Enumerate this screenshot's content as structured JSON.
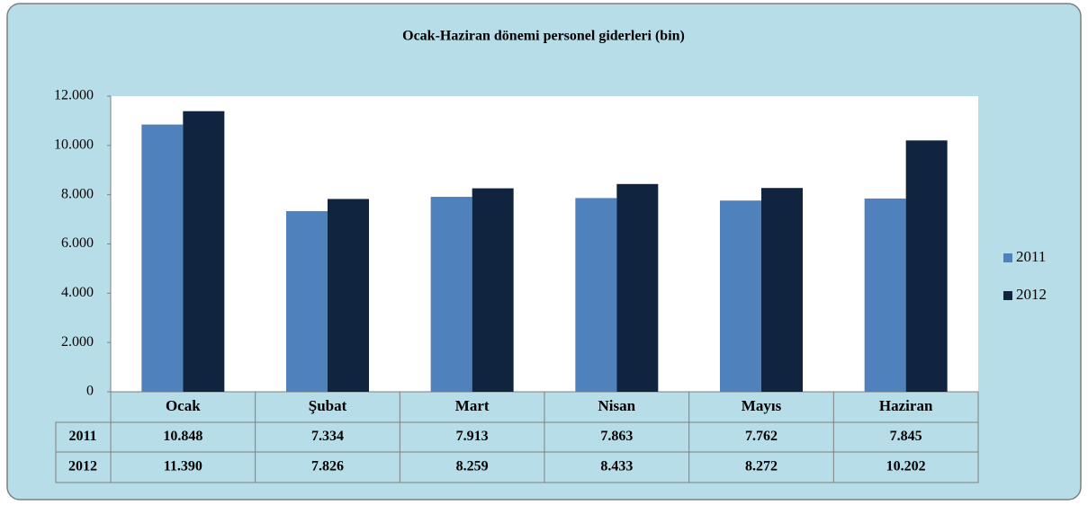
{
  "chart_data": {
    "type": "bar",
    "title": "Ocak-Haziran dönemi personel giderleri (bin)",
    "categories": [
      "Ocak",
      "Şubat",
      "Mart",
      "Nisan",
      "Mayıs",
      "Haziran"
    ],
    "series": [
      {
        "name": "2011",
        "color": "#4f81bd",
        "values": [
          10848,
          7334,
          7913,
          7863,
          7762,
          7845
        ],
        "value_labels": [
          "10.848",
          "7.334",
          "7.913",
          "7.863",
          "7.762",
          "7.845"
        ]
      },
      {
        "name": "2012",
        "color": "#10243f",
        "values": [
          11390,
          7826,
          8259,
          8433,
          8272,
          10202
        ],
        "value_labels": [
          "11.390",
          "7.826",
          "8.259",
          "8.433",
          "8.272",
          "10.202"
        ]
      }
    ],
    "ylim": [
      0,
      12000
    ],
    "yticks": [
      0,
      {
        "value": 2000,
        "label": "2.000"
      },
      {
        "value": 4000,
        "label": "4.000"
      },
      {
        "value": 6000,
        "label": "6.000"
      },
      {
        "value": 8000,
        "label": "8.000"
      },
      {
        "value": 10000,
        "label": "10.000"
      },
      {
        "value": 12000,
        "label": "12.000"
      }
    ],
    "legend": "right",
    "grid": false
  }
}
